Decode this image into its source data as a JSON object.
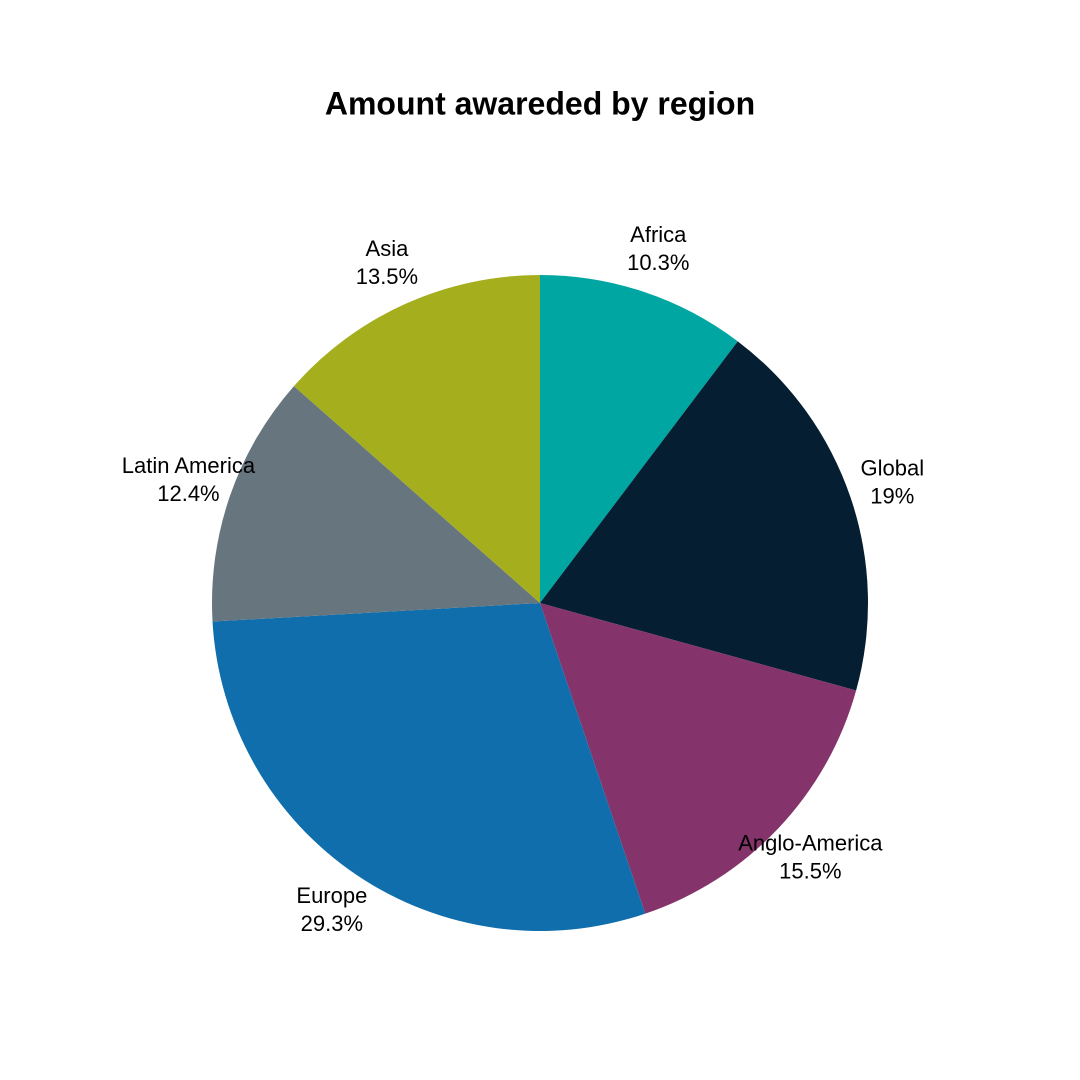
{
  "chart_data": {
    "type": "pie",
    "title": "Amount awareded by region",
    "categories": [
      "Africa",
      "Global",
      "Anglo-America",
      "Europe",
      "Latin America",
      "Asia"
    ],
    "values": [
      10.3,
      19,
      15.5,
      29.3,
      12.4,
      13.5
    ],
    "value_labels": [
      "10.3%",
      "19%",
      "15.5%",
      "29.3%",
      "12.4%",
      "13.5%"
    ],
    "colors": [
      "#00a6a2",
      "#061e31",
      "#84336b",
      "#0f6eab",
      "#67757f",
      "#a5af1e"
    ]
  }
}
